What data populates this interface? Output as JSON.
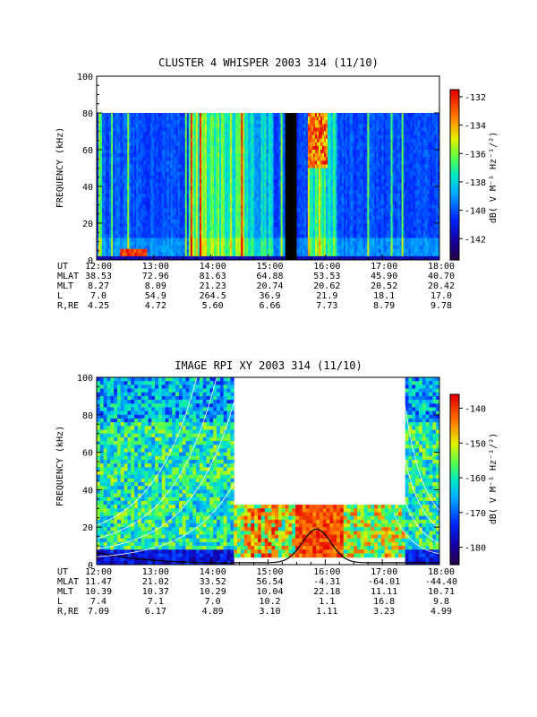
{
  "chart_data": [
    {
      "type": "heatmap",
      "title": "CLUSTER 4 WHISPER 2003 314 (11/10)",
      "ylabel": "FREQUENCY (kHz)",
      "ylim": [
        0,
        100
      ],
      "yticks": [
        "0",
        "20",
        "40",
        "60",
        "80",
        "100"
      ],
      "xlim_hours": [
        12,
        18
      ],
      "xticks": [
        "12:00",
        "13:00",
        "14:00",
        "15:00",
        "16:00",
        "17:00",
        "18:00"
      ],
      "data_upper_freq": 80,
      "colorbar": {
        "label": "dB( V M⁻¹ Hz⁻¹/²)",
        "range": [
          -143.5,
          -131.5
        ],
        "ticks": [
          "-132",
          "-134",
          "-136",
          "-138",
          "-140",
          "-142"
        ]
      },
      "data_gap_hours": [
        15.3,
        15.5
      ],
      "ephemeris": {
        "rows": [
          {
            "label": "UT",
            "values": [
              "12:00",
              "13:00",
              "14:00",
              "15:00",
              "16:00",
              "17:00",
              "18:00"
            ]
          },
          {
            "label": "MLAT",
            "values": [
              "38.53",
              "72.96",
              "81.63",
              "64.88",
              "53.53",
              "45.90",
              "40.70"
            ]
          },
          {
            "label": "MLT",
            "values": [
              "8.27",
              "8.09",
              "21.23",
              "20.74",
              "20.62",
              "20.52",
              "20.42"
            ]
          },
          {
            "label": "L",
            "values": [
              "7.0",
              "54.9",
              "264.5",
              "36.9",
              "21.9",
              "18.1",
              "17.0"
            ]
          },
          {
            "label": "R,RE",
            "values": [
              "4.25",
              "4.72",
              "5.60",
              "6.66",
              "7.73",
              "8.79",
              "9.78"
            ]
          }
        ]
      }
    },
    {
      "type": "heatmap",
      "title": "IMAGE RPI XY 2003 314 (11/10)",
      "ylabel": "FREQUENCY (kHz)",
      "ylim": [
        0,
        100
      ],
      "yticks": [
        "0",
        "20",
        "40",
        "60",
        "80",
        "100"
      ],
      "xlim_hours": [
        12,
        18
      ],
      "xticks": [
        "12:00",
        "13:00",
        "14:00",
        "15:00",
        "16:00",
        "17:00",
        "18:00"
      ],
      "colorbar": {
        "label": "dB( V M⁻¹ Hz⁻¹/²)",
        "range": [
          -185,
          -136
        ],
        "ticks": [
          "-140",
          "-150",
          "-160",
          "-170",
          "-180"
        ]
      },
      "sweep_mode_hours": [
        14.4,
        17.4
      ],
      "sweep_band_khz": [
        5,
        32
      ],
      "ephemeris": {
        "rows": [
          {
            "label": "UT",
            "values": [
              "12:00",
              "13:00",
              "14:00",
              "15:00",
              "16:00",
              "17:00",
              "18:00"
            ]
          },
          {
            "label": "MLAT",
            "values": [
              "11.47",
              "21.02",
              "33.52",
              "56.54",
              "-4.31",
              "-64.01",
              "-44.40"
            ]
          },
          {
            "label": "MLT",
            "values": [
              "10.39",
              "10.37",
              "10.29",
              "10.04",
              "22.18",
              "11.11",
              "10.71"
            ]
          },
          {
            "label": "L",
            "values": [
              "7.4",
              "7.1",
              "7.0",
              "10.2",
              "1.1",
              "16.8",
              "9.8"
            ]
          },
          {
            "label": "R,RE",
            "values": [
              "7.09",
              "6.17",
              "4.89",
              "3.10",
              "1.11",
              "3.23",
              "4.99"
            ]
          }
        ]
      }
    }
  ]
}
